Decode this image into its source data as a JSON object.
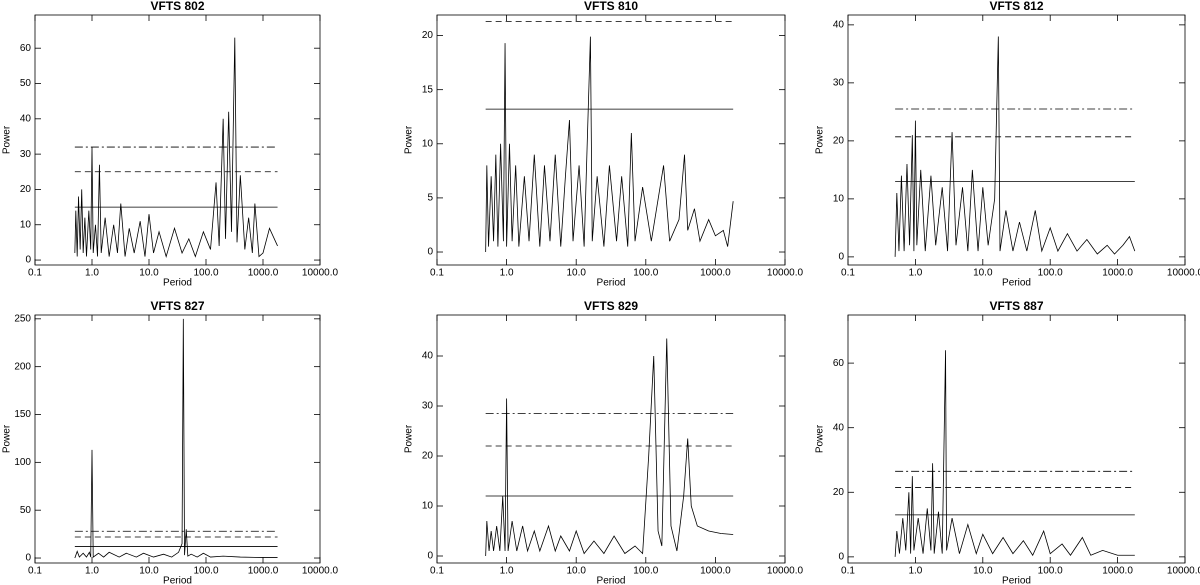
{
  "chart_data": [
    {
      "type": "line",
      "title": "VFTS 802",
      "x_label": "Period",
      "y_label": "Power",
      "xscale": "log",
      "grid": false,
      "color": "#000000",
      "xlim": [
        0.1,
        10000
      ],
      "xticks": [
        {
          "value": 0.1,
          "label": "0.1"
        },
        {
          "value": 1,
          "label": "1.0"
        },
        {
          "value": 10,
          "label": "10.0"
        },
        {
          "value": 100,
          "label": "100.0"
        },
        {
          "value": 1000,
          "label": "1000.0"
        },
        {
          "value": 10000,
          "label": "10000.0"
        }
      ],
      "ylim": [
        -1.4,
        69.4
      ],
      "yticks": [
        0,
        10,
        20,
        30,
        40,
        50,
        60
      ],
      "x": [
        0.5,
        0.52,
        0.55,
        0.58,
        0.62,
        0.66,
        0.7,
        0.75,
        0.8,
        0.88,
        0.95,
        1.0,
        1.05,
        1.15,
        1.25,
        1.35,
        1.45,
        1.7,
        2,
        2.4,
        2.8,
        3.2,
        3.8,
        4.5,
        5.5,
        7,
        8.5,
        10,
        12,
        15,
        20,
        28,
        38,
        50,
        65,
        90,
        120,
        150,
        170,
        200,
        220,
        250,
        280,
        320,
        350,
        400,
        480,
        560,
        650,
        720,
        850,
        1000,
        1300,
        1800
      ],
      "values": [
        2,
        14,
        1,
        18,
        3,
        20,
        2,
        12,
        1,
        14,
        3,
        32,
        2,
        10,
        1,
        27,
        2,
        12,
        1,
        10,
        2,
        16,
        1,
        9,
        2,
        11,
        1,
        13,
        2,
        8,
        1,
        9,
        2,
        6,
        1,
        8,
        3,
        22,
        4,
        40,
        6,
        42,
        8,
        63,
        5,
        24,
        3,
        12,
        2,
        16,
        1,
        2,
        9,
        4
      ],
      "hlines": [
        {
          "value": 15,
          "style": "solid"
        },
        {
          "value": 25,
          "style": "dashed"
        },
        {
          "value": 32,
          "style": "dashdot"
        }
      ]
    },
    {
      "type": "line",
      "title": "VFTS 810",
      "x_label": "Period",
      "y_label": "Power",
      "xscale": "log",
      "grid": false,
      "color": "#000000",
      "xlim": [
        0.1,
        10000
      ],
      "xticks": [
        {
          "value": 0.1,
          "label": "0.1"
        },
        {
          "value": 1,
          "label": "1.0"
        },
        {
          "value": 10,
          "label": "10.0"
        },
        {
          "value": 100,
          "label": "100.0"
        },
        {
          "value": 1000,
          "label": "1000.0"
        },
        {
          "value": 10000,
          "label": "10000.0"
        }
      ],
      "ylim": [
        -1.2,
        21.9
      ],
      "yticks": [
        0,
        5,
        10,
        15,
        20
      ],
      "x": [
        0.5,
        0.52,
        0.55,
        0.6,
        0.65,
        0.7,
        0.75,
        0.82,
        0.9,
        0.95,
        1.0,
        1.1,
        1.2,
        1.35,
        1.5,
        1.8,
        2.1,
        2.5,
        3,
        3.5,
        4.2,
        5,
        6,
        7,
        8,
        9,
        11,
        13,
        16,
        17,
        20,
        25,
        30,
        38,
        45,
        55,
        62,
        70,
        90,
        120,
        180,
        220,
        300,
        360,
        400,
        500,
        600,
        800,
        1000,
        1300,
        1500,
        1800
      ],
      "values": [
        0,
        8,
        0.5,
        7,
        1,
        9,
        0.5,
        10,
        1,
        19.3,
        0.5,
        10,
        1,
        8,
        0.5,
        7,
        1,
        9,
        0.5,
        8,
        1,
        9,
        0.5,
        7,
        12.2,
        1,
        8,
        0.5,
        19.9,
        1,
        7,
        0.5,
        8,
        1,
        7,
        0.5,
        11,
        1,
        6,
        1,
        8,
        1,
        3,
        9,
        2,
        4,
        1,
        3,
        1.5,
        2,
        0.5,
        4.7
      ],
      "hlines": [
        {
          "value": 13.2,
          "style": "solid"
        },
        {
          "value": 21.3,
          "style": "dashed"
        }
      ]
    },
    {
      "type": "line",
      "title": "VFTS 812",
      "x_label": "Period",
      "y_label": "Power",
      "xscale": "log",
      "grid": false,
      "color": "#000000",
      "xlim": [
        0.1,
        10000
      ],
      "xticks": [
        {
          "value": 0.1,
          "label": "0.1"
        },
        {
          "value": 1,
          "label": "1.0"
        },
        {
          "value": 10,
          "label": "10.0"
        },
        {
          "value": 100,
          "label": "100.0"
        },
        {
          "value": 1000,
          "label": "1000.0"
        },
        {
          "value": 10000,
          "label": "10000.0"
        }
      ],
      "ylim": [
        -1.4,
        41.7
      ],
      "yticks": [
        0,
        10,
        20,
        30,
        40
      ],
      "x": [
        0.5,
        0.53,
        0.57,
        0.62,
        0.68,
        0.75,
        0.82,
        0.9,
        0.95,
        1.0,
        1.05,
        1.2,
        1.4,
        1.7,
        2,
        2.5,
        3,
        3.5,
        4,
        5,
        6,
        7,
        8.5,
        10,
        12,
        15,
        17,
        18,
        22,
        28,
        35,
        45,
        60,
        75,
        100,
        130,
        180,
        250,
        350,
        500,
        700,
        900,
        1200,
        1500,
        1800
      ],
      "values": [
        0,
        11,
        1,
        14,
        1,
        16,
        2,
        21,
        1,
        23.5,
        2,
        15,
        1,
        14,
        2,
        12,
        1,
        21.5,
        2,
        12,
        1,
        15,
        1,
        12,
        2,
        10,
        38,
        1,
        8,
        1,
        6,
        1,
        8,
        1,
        5,
        1,
        4,
        1,
        3,
        0.5,
        2,
        0.5,
        2,
        3.5,
        1
      ],
      "hlines": [
        {
          "value": 13,
          "style": "solid"
        },
        {
          "value": 20.7,
          "style": "dashed"
        },
        {
          "value": 25.5,
          "style": "dashdot"
        }
      ]
    },
    {
      "type": "line",
      "title": "VFTS 827",
      "x_label": "Period",
      "y_label": "Power",
      "xscale": "log",
      "grid": false,
      "color": "#000000",
      "xlim": [
        0.1,
        10000
      ],
      "xticks": [
        {
          "value": 0.1,
          "label": "0.1"
        },
        {
          "value": 1,
          "label": "1.0"
        },
        {
          "value": 10,
          "label": "10.0"
        },
        {
          "value": 100,
          "label": "100.0"
        },
        {
          "value": 1000,
          "label": "1000.0"
        },
        {
          "value": 10000,
          "label": "10000.0"
        }
      ],
      "ylim": [
        -5.2,
        254
      ],
      "yticks": [
        0,
        50,
        100,
        150,
        200,
        250
      ],
      "x": [
        0.5,
        0.55,
        0.6,
        0.7,
        0.8,
        0.9,
        0.95,
        1.0,
        1.05,
        1.3,
        1.6,
        2,
        3,
        4,
        6,
        8,
        12,
        18,
        25,
        33,
        38,
        40,
        42,
        45,
        48,
        55,
        70,
        90,
        120,
        200,
        400,
        1000,
        1800
      ],
      "values": [
        0,
        7,
        1,
        5,
        1,
        6,
        1,
        113,
        1,
        5,
        1,
        6,
        1,
        5,
        1,
        5,
        1,
        4,
        1,
        6,
        15,
        250,
        3,
        30,
        2,
        4,
        1,
        5,
        1,
        2,
        1,
        0.5,
        0.5
      ],
      "hlines": [
        {
          "value": 12,
          "style": "solid"
        },
        {
          "value": 22,
          "style": "dashed"
        },
        {
          "value": 28,
          "style": "dashdot"
        }
      ]
    },
    {
      "type": "line",
      "title": "VFTS 829",
      "x_label": "Period",
      "y_label": "Power",
      "xscale": "log",
      "grid": false,
      "color": "#000000",
      "xlim": [
        0.1,
        10000
      ],
      "xticks": [
        {
          "value": 0.1,
          "label": "0.1"
        },
        {
          "value": 1,
          "label": "1.0"
        },
        {
          "value": 10,
          "label": "10.0"
        },
        {
          "value": 100,
          "label": "100.0"
        },
        {
          "value": 1000,
          "label": "1000.0"
        },
        {
          "value": 10000,
          "label": "10000.0"
        }
      ],
      "ylim": [
        -1.4,
        48.2
      ],
      "yticks": [
        0,
        10,
        20,
        30,
        40
      ],
      "x": [
        0.5,
        0.52,
        0.56,
        0.6,
        0.65,
        0.72,
        0.8,
        0.88,
        0.95,
        1.0,
        1.05,
        1.2,
        1.4,
        1.7,
        2,
        2.5,
        3,
        4,
        5,
        6,
        8,
        10,
        13,
        18,
        25,
        35,
        50,
        70,
        90,
        110,
        130,
        150,
        170,
        200,
        230,
        280,
        350,
        400,
        450,
        550,
        800,
        1200,
        1800
      ],
      "values": [
        0,
        7,
        1,
        5,
        1,
        6,
        1,
        12,
        1,
        31.5,
        1,
        7,
        1,
        6,
        1,
        5,
        1,
        6,
        1,
        4,
        1,
        5,
        0.5,
        3,
        0.5,
        4,
        0.5,
        2,
        0.5,
        20,
        40,
        5,
        2,
        43.5,
        6,
        1,
        12,
        23.5,
        10,
        6,
        5,
        4.5,
        4.3
      ],
      "hlines": [
        {
          "value": 12,
          "style": "solid"
        },
        {
          "value": 22,
          "style": "dashed"
        },
        {
          "value": 28.5,
          "style": "dashdot"
        }
      ]
    },
    {
      "type": "line",
      "title": "VFTS 887",
      "x_label": "Period",
      "y_label": "Power",
      "xscale": "log",
      "grid": false,
      "color": "#000000",
      "xlim": [
        0.1,
        10000
      ],
      "xticks": [
        {
          "value": 0.1,
          "label": "0.1"
        },
        {
          "value": 1,
          "label": "1.0"
        },
        {
          "value": 10,
          "label": "10.0"
        },
        {
          "value": 100,
          "label": "100.0"
        },
        {
          "value": 1000,
          "label": "1000.0"
        },
        {
          "value": 10000,
          "label": "10000.0"
        }
      ],
      "ylim": [
        -1.9,
        74.9
      ],
      "yticks": [
        0,
        20,
        40,
        60
      ],
      "x": [
        0.5,
        0.53,
        0.58,
        0.65,
        0.72,
        0.8,
        0.85,
        0.9,
        0.95,
        1.1,
        1.3,
        1.5,
        1.7,
        1.8,
        1.9,
        2.2,
        2.5,
        2.8,
        2.9,
        3.5,
        4.5,
        6,
        8,
        10,
        14,
        20,
        28,
        40,
        55,
        80,
        100,
        150,
        200,
        300,
        400,
        600,
        1000,
        1800
      ],
      "values": [
        0,
        8,
        1,
        12,
        2,
        20,
        1,
        25,
        2,
        12,
        1,
        15,
        2,
        29,
        1,
        14,
        1,
        64,
        2,
        12,
        1,
        10,
        1,
        7,
        1,
        6,
        1,
        5,
        0.5,
        8,
        1,
        4,
        0.5,
        6,
        0.5,
        2,
        0.5,
        0.5
      ],
      "hlines": [
        {
          "value": 13,
          "style": "solid"
        },
        {
          "value": 21.5,
          "style": "dashed"
        },
        {
          "value": 26.5,
          "style": "dashdot"
        }
      ]
    }
  ]
}
